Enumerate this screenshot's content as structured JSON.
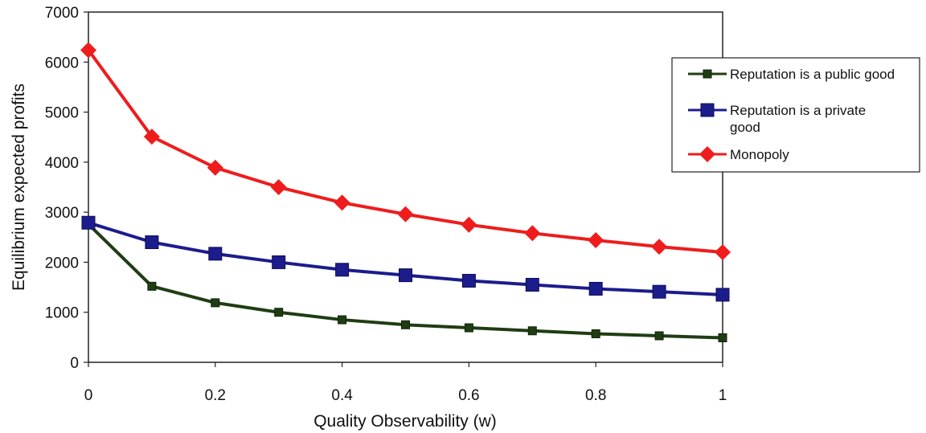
{
  "chart_data": {
    "type": "line",
    "title": "",
    "xlabel": "Quality Observability (w)",
    "ylabel": "Equilibrium expected profits",
    "xlim": [
      0,
      1
    ],
    "ylim": [
      0,
      7000
    ],
    "x_ticks": [
      0,
      0.2,
      0.4,
      0.6,
      0.8,
      1
    ],
    "x_tick_labels": [
      "0",
      "0.2",
      "0.4",
      "0.6",
      "0.8",
      "1"
    ],
    "y_ticks": [
      0,
      1000,
      2000,
      3000,
      4000,
      5000,
      6000,
      7000
    ],
    "y_tick_labels": [
      "0",
      "1000",
      "2000",
      "3000",
      "4000",
      "5000",
      "6000",
      "7000"
    ],
    "grid": false,
    "legend_position": "right",
    "x": [
      0,
      0.1,
      0.2,
      0.3,
      0.4,
      0.5,
      0.6,
      0.7,
      0.8,
      0.9,
      1.0
    ],
    "series": [
      {
        "name": "Reputation is a public good",
        "legend_lines": [
          "Reputation is a public good"
        ],
        "color": "#1f3d12",
        "marker": "small-square",
        "values": [
          2760,
          1520,
          1190,
          1000,
          850,
          750,
          690,
          630,
          570,
          530,
          490
        ]
      },
      {
        "name": "Reputation is a private good",
        "legend_lines": [
          "Reputation is a private",
          "good"
        ],
        "color": "#1c1c8c",
        "marker": "square",
        "values": [
          2790,
          2400,
          2170,
          2000,
          1850,
          1740,
          1630,
          1550,
          1470,
          1410,
          1350
        ]
      },
      {
        "name": "Monopoly",
        "legend_lines": [
          "Monopoly"
        ],
        "color": "#ee1c1c",
        "marker": "diamond",
        "values": [
          6240,
          4510,
          3890,
          3500,
          3190,
          2960,
          2750,
          2580,
          2440,
          2310,
          2200
        ]
      }
    ]
  }
}
